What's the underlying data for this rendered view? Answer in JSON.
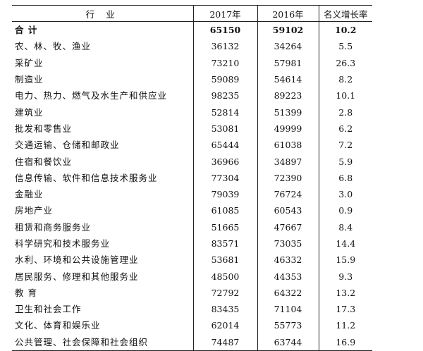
{
  "header": {
    "industry": "行 业",
    "y2017": "2017年",
    "y2016": "2016年",
    "growth": "名义增长率"
  },
  "rows": [
    {
      "industry": "合 计",
      "y2017": "65150",
      "y2016": "59102",
      "growth": "10.2"
    },
    {
      "industry": "农、林、牧、渔业",
      "y2017": "36132",
      "y2016": "34264",
      "growth": "5.5"
    },
    {
      "industry": "采矿业",
      "y2017": "73210",
      "y2016": "57981",
      "growth": "26.3"
    },
    {
      "industry": "制造业",
      "y2017": "59089",
      "y2016": "54614",
      "growth": "8.2"
    },
    {
      "industry": "电力、热力、燃气及水生产和供应业",
      "y2017": "98235",
      "y2016": "89223",
      "growth": "10.1"
    },
    {
      "industry": "建筑业",
      "y2017": "52814",
      "y2016": "51399",
      "growth": "2.8"
    },
    {
      "industry": "批发和零售业",
      "y2017": "53081",
      "y2016": "49999",
      "growth": "6.2"
    },
    {
      "industry": "交通运输、仓储和邮政业",
      "y2017": "65444",
      "y2016": "61038",
      "growth": "7.2"
    },
    {
      "industry": "住宿和餐饮业",
      "y2017": "36966",
      "y2016": "34897",
      "growth": "5.9"
    },
    {
      "industry": "信息传输、软件和信息技术服务业",
      "y2017": "77304",
      "y2016": "72390",
      "growth": "6.8"
    },
    {
      "industry": "金融业",
      "y2017": "79039",
      "y2016": "76724",
      "growth": "3.0"
    },
    {
      "industry": "房地产业",
      "y2017": "61085",
      "y2016": "60543",
      "growth": "0.9"
    },
    {
      "industry": "租赁和商务服务业",
      "y2017": "51665",
      "y2016": "47667",
      "growth": "8.4"
    },
    {
      "industry": "科学研究和技术服务业",
      "y2017": "83571",
      "y2016": "73035",
      "growth": "14.4"
    },
    {
      "industry": "水利、环境和公共设施管理业",
      "y2017": "53681",
      "y2016": "46332",
      "growth": "15.9"
    },
    {
      "industry": "居民服务、修理和其他服务业",
      "y2017": "48500",
      "y2016": "44353",
      "growth": "9.3"
    },
    {
      "industry": "教 育",
      "y2017": "72792",
      "y2016": "64322",
      "growth": "13.2"
    },
    {
      "industry": "卫生和社会工作",
      "y2017": "83435",
      "y2016": "71104",
      "growth": "17.3"
    },
    {
      "industry": "文化、体育和娱乐业",
      "y2017": "62014",
      "y2016": "55773",
      "growth": "11.2"
    },
    {
      "industry": "公共管理、社会保障和社会组织",
      "y2017": "74487",
      "y2016": "63744",
      "growth": "16.9"
    }
  ]
}
